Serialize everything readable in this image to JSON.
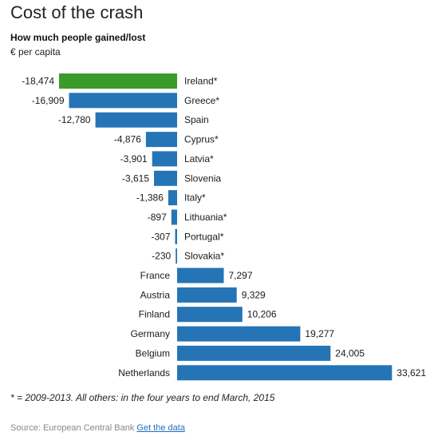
{
  "header": {
    "title": "Cost of the crash",
    "subtitle": "How much people gained/lost",
    "unit": "€ per capita"
  },
  "footer": {
    "footnote": "* = 2009-2013. All others: in the four years to end March, 2015",
    "source_prefix": "Source: European Central Bank",
    "get_data_link": "Get the data"
  },
  "colors": {
    "highlight": "#3a9a2a",
    "bar": "#2575b6"
  },
  "chart_data": {
    "type": "bar",
    "orientation": "horizontal",
    "title": "Cost of the crash",
    "subtitle": "How much people gained/lost",
    "unit": "€ per capita",
    "categories": [
      "Ireland*",
      "Greece*",
      "Spain",
      "Cyprus*",
      "Latvia*",
      "Slovenia",
      "Italy*",
      "Lithuania*",
      "Portugal*",
      "Slovakia*",
      "France",
      "Austria",
      "Finland",
      "Germany",
      "Belgium",
      "Netherlands"
    ],
    "values": [
      -18474,
      -16909,
      -12780,
      -4876,
      -3901,
      -3615,
      -1386,
      -897,
      -307,
      -230,
      7297,
      9329,
      10206,
      19277,
      24005,
      33621
    ],
    "value_labels": [
      "-18,474",
      "-16,909",
      "-12,780",
      "-4,876",
      "-3,901",
      "-3,615",
      "-1,386",
      "-897",
      "-307",
      "-230",
      "7,297",
      "9,329",
      "10,206",
      "19,277",
      "24,005",
      "33,621"
    ],
    "highlighted_category": "Ireland*",
    "xlim": [
      -18474,
      33621
    ],
    "grid": false,
    "legend": "none"
  }
}
